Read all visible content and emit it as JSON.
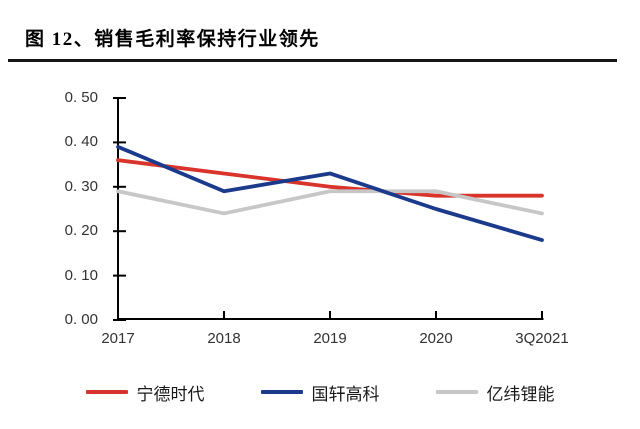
{
  "figure": {
    "title": "图 12、销售毛利率保持行业领先"
  },
  "chart_data": {
    "type": "line",
    "title": "销售毛利率保持行业领先",
    "categories": [
      "2017",
      "2018",
      "2019",
      "2020",
      "3Q2021"
    ],
    "series": [
      {
        "name": "宁德时代",
        "color": "#d9342b",
        "values": [
          0.36,
          0.33,
          0.3,
          0.28,
          0.28
        ]
      },
      {
        "name": "国轩高科",
        "color": "#1c3a8c",
        "values": [
          0.39,
          0.29,
          0.33,
          0.25,
          0.18
        ]
      },
      {
        "name": "亿纬锂能",
        "color": "#c7c7c7",
        "values": [
          0.29,
          0.24,
          0.29,
          0.29,
          0.24
        ]
      }
    ],
    "ylim": [
      0,
      0.5
    ],
    "y_ticks": [
      0.0,
      0.1,
      0.2,
      0.3,
      0.4,
      0.5
    ],
    "y_tick_labels": [
      "0. 00",
      "0. 10",
      "0. 20",
      "0. 30",
      "0. 40",
      "0. 50"
    ],
    "grid": false,
    "legend_position": "bottom",
    "axis_color": "#000000",
    "tick_label_color": "#333333"
  }
}
